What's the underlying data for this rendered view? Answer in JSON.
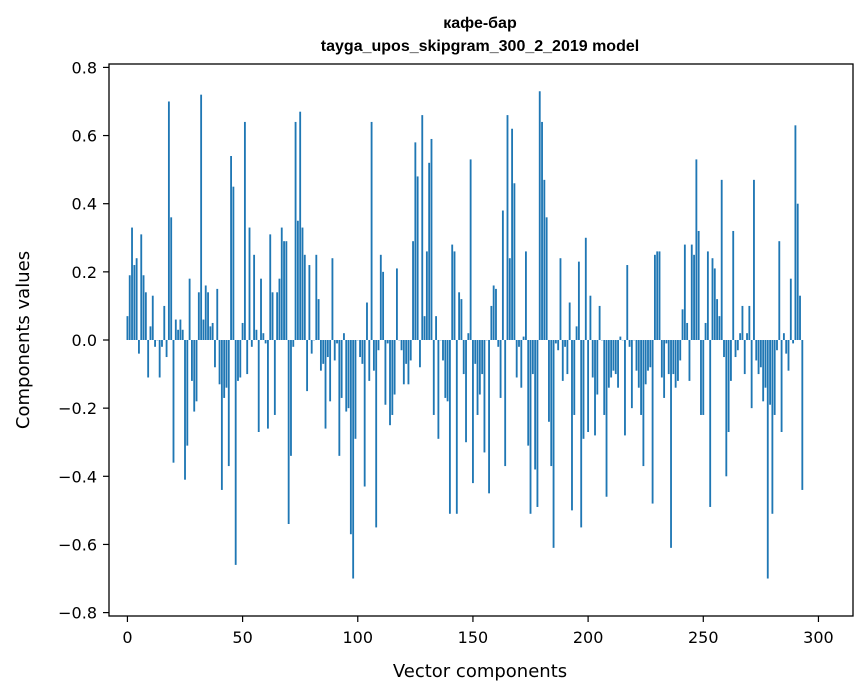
{
  "chart_data": {
    "type": "bar",
    "title": "кафе-бар",
    "subtitle": "tayga_upos_skipgram_300_2_2019 model",
    "xlabel": "Vector components",
    "ylabel": "Components values",
    "xlim": [
      -8,
      315
    ],
    "ylim": [
      -0.81,
      0.81
    ],
    "xticks": [
      0,
      50,
      100,
      150,
      200,
      250,
      300
    ],
    "xtick_labels": [
      "0",
      "50",
      "100",
      "150",
      "200",
      "250",
      "300"
    ],
    "yticks": [
      -0.8,
      -0.6,
      -0.4,
      -0.2,
      0.0,
      0.2,
      0.4,
      0.6,
      0.8
    ],
    "ytick_labels": [
      "−0.8",
      "−0.6",
      "−0.4",
      "−0.2",
      "0.0",
      "0.2",
      "0.4",
      "0.6",
      "0.8"
    ],
    "grid": false,
    "bar_color": "#1f77b4",
    "x_start": 0,
    "values": [
      0.07,
      0.19,
      0.33,
      0.22,
      0.24,
      -0.04,
      0.31,
      0.19,
      0.14,
      -0.11,
      0.04,
      0.13,
      -0.02,
      0.0,
      -0.11,
      -0.02,
      0.1,
      -0.05,
      0.7,
      0.36,
      -0.36,
      0.06,
      0.03,
      0.06,
      0.03,
      -0.41,
      -0.31,
      0.18,
      -0.12,
      -0.21,
      -0.18,
      0.14,
      0.72,
      0.06,
      0.16,
      0.14,
      0.04,
      0.05,
      -0.08,
      0.15,
      -0.13,
      -0.44,
      -0.17,
      -0.14,
      -0.37,
      0.54,
      0.45,
      -0.66,
      -0.12,
      -0.11,
      0.05,
      0.64,
      -0.1,
      0.33,
      -0.02,
      0.25,
      0.03,
      -0.27,
      0.18,
      0.02,
      -0.01,
      -0.26,
      0.31,
      0.14,
      -0.22,
      0.14,
      0.18,
      0.33,
      0.29,
      0.29,
      -0.54,
      -0.34,
      -0.02,
      0.64,
      0.35,
      0.67,
      0.33,
      0.25,
      -0.15,
      0.22,
      -0.04,
      0.0,
      0.25,
      0.12,
      -0.09,
      -0.07,
      -0.26,
      -0.05,
      -0.18,
      0.24,
      -0.06,
      -0.01,
      -0.34,
      -0.17,
      0.02,
      -0.21,
      -0.2,
      -0.57,
      -0.7,
      -0.29,
      0.0,
      -0.05,
      -0.07,
      -0.43,
      0.11,
      -0.12,
      0.64,
      -0.09,
      -0.55,
      -0.03,
      0.25,
      0.2,
      -0.19,
      -0.01,
      -0.25,
      -0.22,
      -0.16,
      0.21,
      0.0,
      -0.03,
      -0.13,
      -0.07,
      -0.13,
      -0.06,
      0.29,
      0.58,
      0.48,
      -0.08,
      0.66,
      0.07,
      0.26,
      0.52,
      0.59,
      -0.22,
      0.07,
      -0.29,
      0.0,
      -0.06,
      -0.17,
      -0.18,
      -0.51,
      0.28,
      0.26,
      -0.51,
      0.14,
      0.12,
      -0.1,
      -0.3,
      0.02,
      0.53,
      -0.42,
      -0.07,
      -0.22,
      -0.16,
      -0.1,
      -0.33,
      0.0,
      -0.45,
      0.1,
      0.16,
      0.15,
      -0.02,
      -0.17,
      0.38,
      -0.37,
      0.66,
      0.24,
      0.62,
      0.46,
      -0.11,
      -0.02,
      -0.14,
      0.01,
      0.26,
      -0.31,
      -0.51,
      -0.1,
      -0.38,
      -0.49,
      0.73,
      0.64,
      0.47,
      0.36,
      -0.24,
      -0.37,
      -0.61,
      -0.01,
      -0.03,
      0.24,
      -0.12,
      -0.02,
      -0.1,
      0.11,
      -0.5,
      -0.22,
      0.04,
      0.23,
      -0.55,
      -0.29,
      0.3,
      -0.27,
      0.13,
      -0.11,
      -0.28,
      -0.16,
      0.1,
      0.0,
      -0.22,
      -0.46,
      -0.14,
      -0.11,
      -0.09,
      -0.1,
      -0.14,
      0.01,
      0.0,
      -0.28,
      0.22,
      -0.02,
      -0.2,
      0.0,
      -0.09,
      -0.14,
      -0.22,
      -0.37,
      -0.13,
      -0.09,
      -0.08,
      -0.48,
      0.25,
      0.26,
      0.26,
      -0.11,
      -0.17,
      -0.01,
      -0.1,
      -0.61,
      -0.1,
      -0.14,
      -0.12,
      -0.06,
      0.09,
      0.28,
      0.05,
      -0.12,
      0.28,
      0.25,
      0.53,
      0.32,
      -0.22,
      -0.22,
      0.05,
      0.26,
      -0.49,
      0.24,
      0.21,
      0.12,
      0.07,
      0.47,
      -0.05,
      -0.4,
      -0.27,
      -0.12,
      0.32,
      -0.05,
      -0.03,
      0.02,
      0.1,
      -0.1,
      0.02,
      0.1,
      -0.2,
      0.47,
      -0.06,
      -0.1,
      -0.08,
      -0.18,
      -0.14,
      -0.7,
      -0.19,
      -0.51,
      -0.22,
      -0.03,
      0.29,
      -0.27,
      0.02,
      -0.04,
      -0.09,
      0.18,
      -0.01,
      0.63,
      0.4,
      0.13,
      -0.44
    ]
  }
}
